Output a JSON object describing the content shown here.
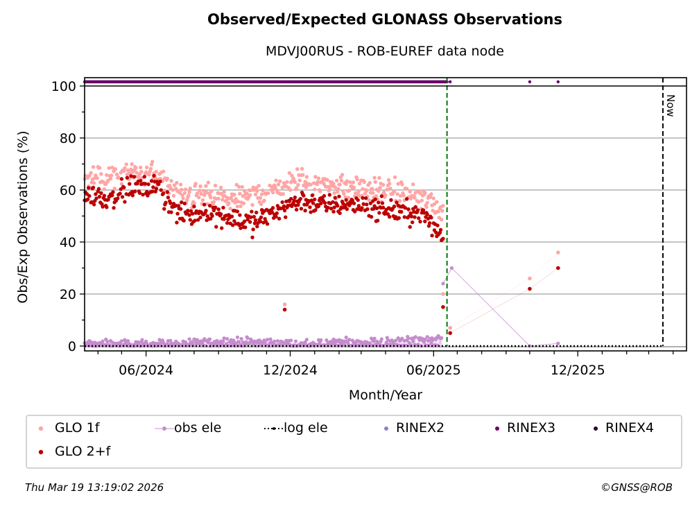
{
  "title": "Observed/Expected GLONASS Observations",
  "subtitle": "MDVJ00RUS - ROB-EUREF data node",
  "footer": {
    "timestamp": "Thu Mar 19 13:19:02 2026",
    "copyright": "©GNSS@ROB"
  },
  "legend": [
    {
      "label": "GLO 1f",
      "color": "#ffa5a5",
      "style": "dot"
    },
    {
      "label": "obs ele",
      "color": "#c58dcd",
      "style": "line-dot"
    },
    {
      "label": "log ele",
      "color": "#000000",
      "style": "dotted"
    },
    {
      "label": "RINEX2",
      "color": "#8585c8",
      "style": "dot"
    },
    {
      "label": "RINEX3",
      "color": "#6a006a",
      "style": "dot"
    },
    {
      "label": "RINEX4",
      "color": "#2a0030",
      "style": "dot"
    },
    {
      "label": "GLO 2+f",
      "color": "#bb0000",
      "style": "dot"
    }
  ],
  "chart_data": {
    "type": "scatter",
    "title": "Observed/Expected GLONASS Observations",
    "subtitle": "MDVJ00RUS - ROB-EUREF data node",
    "xlabel": "Month/Year",
    "ylabel": "Obs/Exp Observations (%)",
    "ylim": [
      0,
      100
    ],
    "yticks": [
      0,
      20,
      40,
      60,
      80,
      100
    ],
    "xlim": [
      "2024-03-15",
      "2026-04-18"
    ],
    "xticks": [
      {
        "date": "2024-06-01",
        "label": "06/2024"
      },
      {
        "date": "2024-12-01",
        "label": "12/2024"
      },
      {
        "date": "2025-06-01",
        "label": "06/2025"
      },
      {
        "date": "2025-12-01",
        "label": "12/2025"
      }
    ],
    "grid": true,
    "legend_position": "bottom",
    "vlines": [
      {
        "date": "2025-06-18",
        "color": "#007700",
        "style": "dashed",
        "label": ""
      },
      {
        "date": "2026-03-19",
        "color": "#000000",
        "style": "dashed",
        "label": "Now"
      }
    ],
    "colors": {
      "glo1f": "#ffa5a5",
      "glo2f": "#bb0000",
      "obs_ele": "#c58dcd",
      "log_ele": "#000000",
      "rinex3": "#6a006a",
      "grid": "#b0b0b0"
    },
    "series": [
      {
        "name": "GLO 1f",
        "segments_monthly_mean": [
          {
            "month": "2024-03",
            "value": 66
          },
          {
            "month": "2024-04",
            "value": 64
          },
          {
            "month": "2024-05",
            "value": 67
          },
          {
            "month": "2024-06",
            "value": 66
          },
          {
            "month": "2024-07",
            "value": 57
          },
          {
            "month": "2024-08",
            "value": 58
          },
          {
            "month": "2024-09",
            "value": 56
          },
          {
            "month": "2024-10",
            "value": 58
          },
          {
            "month": "2024-11",
            "value": 61
          },
          {
            "month": "2024-12",
            "value": 64
          },
          {
            "month": "2025-01",
            "value": 62
          },
          {
            "month": "2025-02",
            "value": 61
          },
          {
            "month": "2025-03",
            "value": 60
          },
          {
            "month": "2025-04",
            "value": 59
          },
          {
            "month": "2025-05",
            "value": 57
          },
          {
            "month": "2025-06",
            "value": 52
          }
        ],
        "points": [
          {
            "date": "2024-11-24",
            "value": 16
          },
          {
            "date": "2025-06-13",
            "value": 20
          },
          {
            "date": "2025-06-22",
            "value": 7
          },
          {
            "date": "2025-10-01",
            "value": 26
          },
          {
            "date": "2025-11-06",
            "value": 36
          }
        ]
      },
      {
        "name": "GLO 2+f",
        "segments_monthly_mean": [
          {
            "month": "2024-03",
            "value": 58
          },
          {
            "month": "2024-04",
            "value": 57
          },
          {
            "month": "2024-05",
            "value": 61
          },
          {
            "month": "2024-06",
            "value": 61
          },
          {
            "month": "2024-07",
            "value": 50
          },
          {
            "month": "2024-08",
            "value": 52
          },
          {
            "month": "2024-09",
            "value": 50
          },
          {
            "month": "2024-10",
            "value": 47
          },
          {
            "month": "2024-11",
            "value": 53
          },
          {
            "month": "2024-12",
            "value": 56
          },
          {
            "month": "2025-01",
            "value": 54
          },
          {
            "month": "2025-02",
            "value": 55
          },
          {
            "month": "2025-03",
            "value": 53
          },
          {
            "month": "2025-04",
            "value": 52
          },
          {
            "month": "2025-05",
            "value": 51
          },
          {
            "month": "2025-06",
            "value": 42
          }
        ],
        "points": [
          {
            "date": "2024-11-24",
            "value": 14
          },
          {
            "date": "2025-06-13",
            "value": 15
          },
          {
            "date": "2025-06-22",
            "value": 5
          },
          {
            "date": "2025-10-01",
            "value": 22
          },
          {
            "date": "2025-11-06",
            "value": 30
          }
        ]
      },
      {
        "name": "obs ele",
        "segments_monthly_mean": [
          {
            "month": "2024-03",
            "value": 1
          },
          {
            "month": "2024-06",
            "value": 1
          },
          {
            "month": "2024-09",
            "value": 2
          },
          {
            "month": "2024-12",
            "value": 1
          },
          {
            "month": "2025-03",
            "value": 2
          },
          {
            "month": "2025-06",
            "value": 3
          }
        ],
        "points": [
          {
            "date": "2025-06-13",
            "value": 24
          },
          {
            "date": "2025-06-24",
            "value": 30
          },
          {
            "date": "2025-10-01",
            "value": 0
          },
          {
            "date": "2025-11-06",
            "value": 1
          }
        ]
      },
      {
        "name": "log ele",
        "range": [
          "2024-03-15",
          "2026-03-19"
        ],
        "value": 0
      },
      {
        "name": "RINEX3",
        "range": [
          "2024-03-15",
          "2025-06-18"
        ],
        "points_after": [
          "2025-06-22",
          "2025-10-01",
          "2025-11-06"
        ]
      }
    ]
  }
}
